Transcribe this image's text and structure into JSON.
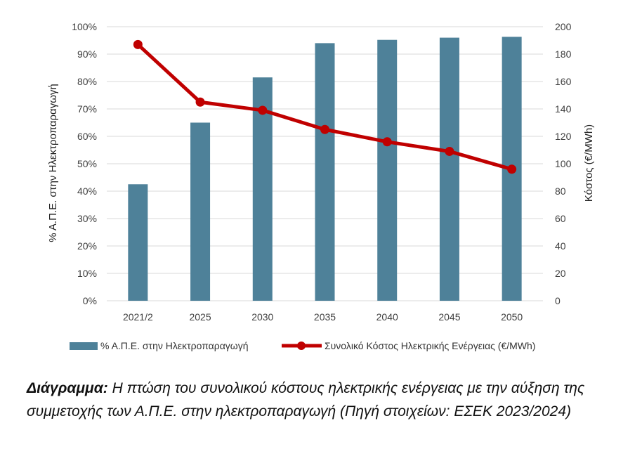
{
  "chart_data": {
    "type": "bar",
    "categories": [
      "2021/2",
      "2025",
      "2030",
      "2035",
      "2040",
      "2045",
      "2050"
    ],
    "series": [
      {
        "name": "% Α.Π.Ε. στην Ηλεκτροπαραγωγή",
        "chart_type": "bar",
        "axis": "left",
        "values": [
          42.5,
          65,
          81.5,
          94,
          95.2,
          96,
          96.3
        ],
        "color": "#4e8199"
      },
      {
        "name": "Συνολικό Κόστος Ηλεκτρικής Ενέργειας (€/MWh)",
        "chart_type": "line",
        "axis": "right",
        "values": [
          187,
          145,
          139,
          125,
          116,
          109,
          96
        ],
        "color": "#c00000"
      }
    ],
    "ylabel": "% Α.Π.Ε. στην Ηλεκτροπαραγωγή",
    "ylabel_right": "Κόστος (€/MWh)",
    "ylim": [
      0,
      100
    ],
    "ylim_right": [
      0,
      200
    ],
    "yticks": [
      "0%",
      "10%",
      "20%",
      "30%",
      "40%",
      "50%",
      "60%",
      "70%",
      "80%",
      "90%",
      "100%"
    ],
    "yticks_right": [
      "0",
      "20",
      "40",
      "60",
      "80",
      "100",
      "120",
      "140",
      "160",
      "180",
      "200"
    ],
    "grid": true,
    "legend_position": "bottom"
  },
  "caption": {
    "lead": "Διάγραμμα:",
    "text": "Η πτώση του συνολικού κόστους ηλεκτρικής ενέργειας με την αύξηση της συμμετοχής των Α.Π.Ε. στην ηλεκτροπαραγωγή (Πηγή στοιχείων: ΕΣΕΚ 2023/2024)"
  }
}
